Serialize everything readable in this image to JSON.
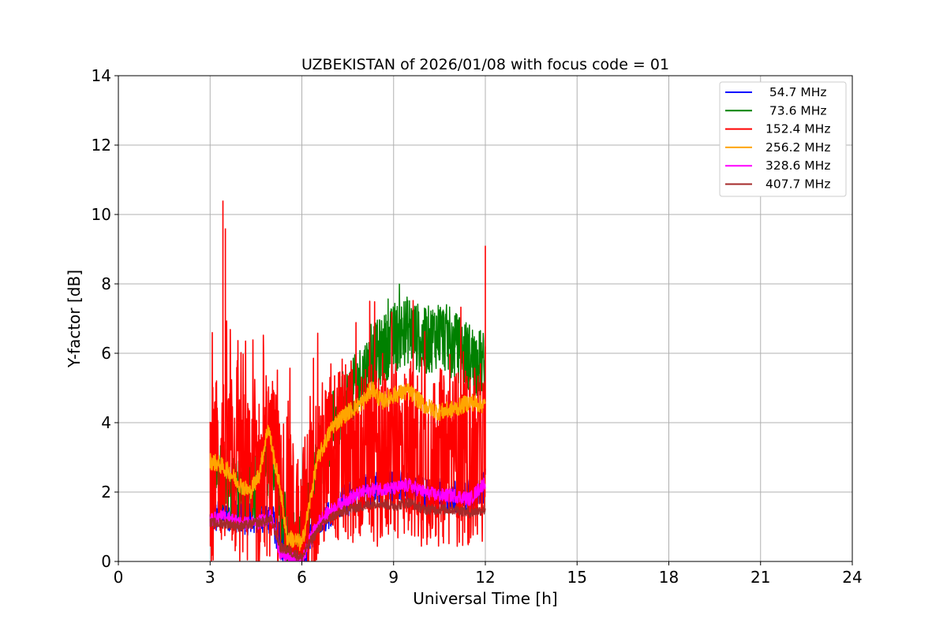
{
  "chart_data": {
    "type": "line",
    "title": "UZBEKISTAN of 2026/01/08 with focus code = 01",
    "xlabel": "Universal Time [h]",
    "ylabel": "Y-factor [dB]",
    "xlim": [
      0,
      24
    ],
    "ylim": [
      0,
      14
    ],
    "xticks": [
      0,
      3,
      6,
      9,
      12,
      15,
      18,
      21,
      24
    ],
    "yticks": [
      0,
      2,
      4,
      6,
      8,
      10,
      12,
      14
    ],
    "grid": true,
    "legend_position": "top-right",
    "series": [
      {
        "name": " 54.7 MHz",
        "color": "#0000ff",
        "x": [
          3.0,
          3.5,
          4.0,
          4.5,
          5.0,
          5.3,
          5.6,
          6.0,
          6.5,
          7.0,
          7.5,
          8.0,
          8.5,
          9.0,
          9.5,
          10.0,
          10.5,
          11.0,
          11.5,
          12.0
        ],
        "y": [
          1.2,
          1.4,
          1.3,
          1.2,
          1.3,
          0.5,
          0.4,
          0.2,
          1.2,
          1.5,
          1.8,
          2.0,
          2.2,
          2.1,
          2.2,
          2.0,
          2.0,
          1.9,
          1.9,
          2.2
        ]
      },
      {
        "name": " 73.6 MHz",
        "color": "#008000",
        "x": [
          3.0,
          3.5,
          4.0,
          4.5,
          5.0,
          5.3,
          5.6,
          6.0,
          6.5,
          7.0,
          7.5,
          8.0,
          8.5,
          9.0,
          9.5,
          10.0,
          10.5,
          11.0,
          11.5,
          12.0
        ],
        "y": [
          2.6,
          2.3,
          2.0,
          2.2,
          2.8,
          1.5,
          0.6,
          0.5,
          2.8,
          3.9,
          4.6,
          5.4,
          6.0,
          6.4,
          6.7,
          6.3,
          6.6,
          6.2,
          5.9,
          5.6
        ]
      },
      {
        "name": "152.4 MHz",
        "color": "#ff0000",
        "x": [
          3.0,
          3.5,
          4.0,
          4.5,
          5.0,
          5.3,
          5.6,
          6.0,
          6.5,
          7.0,
          7.5,
          8.0,
          8.5,
          9.0,
          9.5,
          10.0,
          10.5,
          11.0,
          11.5,
          12.0
        ],
        "y": [
          2.5,
          3.0,
          2.4,
          2.0,
          2.8,
          1.6,
          1.2,
          0.8,
          2.5,
          3.0,
          3.1,
          3.2,
          3.0,
          3.1,
          3.2,
          3.0,
          3.0,
          3.0,
          2.9,
          3.2
        ],
        "peaks": [
          [
            3.42,
            10.4
          ],
          [
            3.5,
            9.6
          ],
          [
            12.0,
            9.1
          ]
        ]
      },
      {
        "name": "256.2 MHz",
        "color": "#ffa500",
        "x": [
          3.0,
          3.3,
          3.6,
          4.0,
          4.3,
          4.6,
          4.9,
          5.1,
          5.3,
          5.5,
          5.8,
          6.0,
          6.2,
          6.5,
          7.0,
          7.5,
          8.0,
          8.3,
          8.6,
          9.0,
          9.5,
          10.0,
          10.5,
          11.0,
          11.5,
          12.0
        ],
        "y": [
          2.9,
          2.8,
          2.6,
          2.2,
          2.0,
          2.5,
          3.9,
          2.9,
          2.1,
          0.7,
          0.6,
          0.5,
          1.4,
          2.9,
          3.9,
          4.3,
          4.6,
          5.0,
          4.6,
          4.8,
          4.9,
          4.5,
          4.3,
          4.4,
          4.6,
          4.5
        ]
      },
      {
        "name": "328.6 MHz",
        "color": "#ff00ff",
        "x": [
          3.0,
          3.5,
          4.0,
          4.5,
          5.0,
          5.3,
          5.6,
          6.0,
          6.3,
          6.6,
          7.0,
          7.5,
          8.0,
          8.5,
          9.0,
          9.5,
          10.0,
          10.5,
          11.0,
          11.5,
          12.0
        ],
        "y": [
          1.2,
          1.3,
          1.1,
          1.1,
          1.3,
          0.2,
          0.1,
          0.0,
          0.7,
          1.2,
          1.5,
          1.8,
          2.0,
          2.1,
          2.1,
          2.2,
          2.0,
          1.9,
          1.9,
          1.8,
          2.3
        ]
      },
      {
        "name": "407.7 MHz",
        "color": "#a52a2a",
        "x": [
          3.0,
          3.5,
          4.0,
          4.5,
          5.0,
          5.3,
          5.6,
          6.0,
          6.3,
          6.6,
          7.0,
          7.5,
          8.0,
          8.5,
          9.0,
          9.5,
          10.0,
          10.5,
          11.0,
          11.5,
          12.0
        ],
        "y": [
          1.1,
          1.1,
          1.0,
          1.1,
          1.2,
          0.4,
          0.3,
          0.1,
          0.6,
          1.0,
          1.3,
          1.5,
          1.6,
          1.7,
          1.6,
          1.7,
          1.5,
          1.5,
          1.5,
          1.4,
          1.5
        ]
      }
    ]
  }
}
